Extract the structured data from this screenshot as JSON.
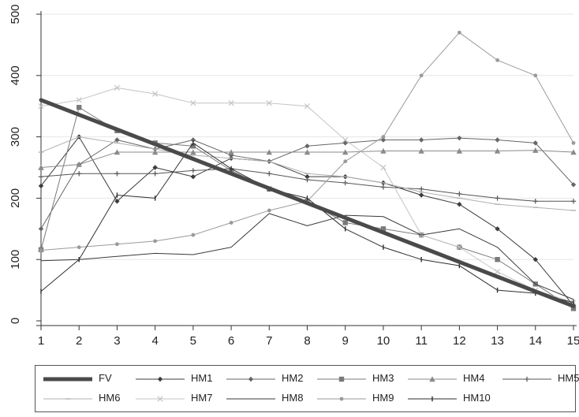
{
  "chart_data": {
    "type": "line",
    "title": "",
    "xlabel": "",
    "ylabel": "",
    "x": [
      1,
      2,
      3,
      4,
      5,
      6,
      7,
      8,
      9,
      10,
      11,
      12,
      13,
      14,
      15
    ],
    "xlim": [
      1,
      15
    ],
    "ylim": [
      0,
      500
    ],
    "xticks": [
      "1",
      "2",
      "3",
      "4",
      "5",
      "6",
      "7",
      "8",
      "9",
      "10",
      "11",
      "12",
      "13",
      "14",
      "15"
    ],
    "yticks": [
      "0",
      "100",
      "200",
      "300",
      "400",
      "500"
    ],
    "grid": "horizontal",
    "legend_position": "bottom",
    "series": [
      {
        "name": "FV",
        "color": "#4a4a4a",
        "width": 5,
        "marker": "none",
        "values": [
          360,
          336,
          312,
          288,
          264,
          240,
          216,
          192,
          168,
          144,
          120,
          96,
          72,
          48,
          24
        ]
      },
      {
        "name": "HM1",
        "color": "#3c3c3c",
        "width": 1,
        "marker": "diamond",
        "values": [
          220,
          300,
          195,
          250,
          235,
          265,
          260,
          235,
          235,
          225,
          205,
          190,
          150,
          100,
          25
        ]
      },
      {
        "name": "HM2",
        "color": "#666666",
        "width": 1,
        "marker": "diamond",
        "values": [
          150,
          255,
          295,
          280,
          295,
          270,
          260,
          285,
          290,
          295,
          295,
          298,
          295,
          290,
          222
        ]
      },
      {
        "name": "HM3",
        "color": "#7a7a7a",
        "width": 1,
        "marker": "square",
        "values": [
          116,
          348,
          310,
          290,
          285,
          245,
          215,
          195,
          160,
          150,
          140,
          120,
          100,
          60,
          20
        ]
      },
      {
        "name": "HM4",
        "color": "#8a8a8a",
        "width": 1,
        "marker": "triangle",
        "values": [
          250,
          255,
          275,
          275,
          275,
          275,
          275,
          275,
          275,
          277,
          277,
          277,
          277,
          278,
          275
        ]
      },
      {
        "name": "HM5",
        "color": "#555555",
        "width": 1,
        "marker": "plus",
        "values": [
          235,
          240,
          240,
          240,
          245,
          248,
          240,
          230,
          225,
          218,
          215,
          207,
          200,
          195,
          195
        ]
      },
      {
        "name": "HM6",
        "color": "#b0b0b0",
        "width": 1,
        "marker": "dash",
        "values": [
          275,
          300,
          290,
          280,
          270,
          265,
          260,
          240,
          235,
          225,
          210,
          200,
          190,
          185,
          180
        ]
      },
      {
        "name": "HM7",
        "color": "#c4c4c4",
        "width": 1,
        "marker": "x",
        "values": [
          350,
          360,
          380,
          370,
          355,
          355,
          355,
          350,
          295,
          250,
          140,
          120,
          80,
          50,
          30
        ]
      },
      {
        "name": "HM8",
        "color": "#3a3a3a",
        "width": 1,
        "marker": "none",
        "values": [
          98,
          100,
          105,
          110,
          108,
          120,
          175,
          155,
          172,
          170,
          140,
          150,
          120,
          60,
          35
        ]
      },
      {
        "name": "HM9",
        "color": "#9a9a9a",
        "width": 1,
        "marker": "dot",
        "values": [
          115,
          120,
          125,
          130,
          140,
          160,
          180,
          195,
          260,
          300,
          400,
          470,
          425,
          400,
          290
        ]
      },
      {
        "name": "HM10",
        "color": "#2e2e2e",
        "width": 1,
        "marker": "bar",
        "values": [
          48,
          100,
          205,
          200,
          290,
          248,
          215,
          200,
          150,
          120,
          100,
          90,
          50,
          45,
          30
        ]
      }
    ]
  }
}
